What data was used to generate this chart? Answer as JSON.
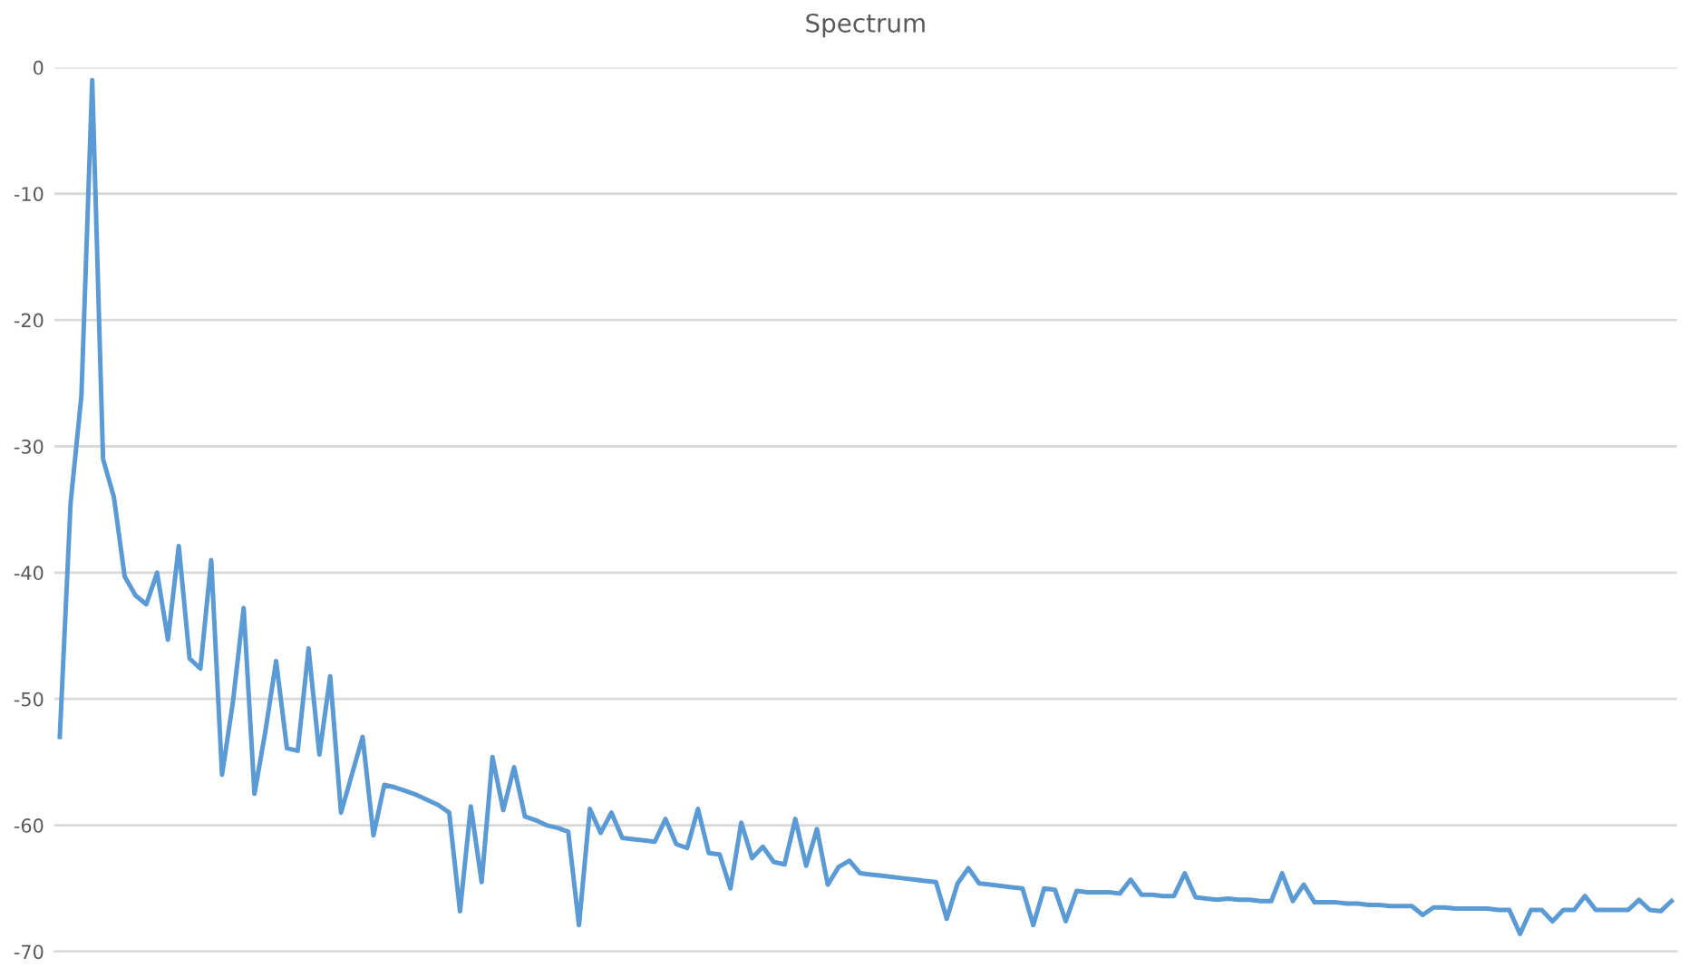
{
  "chart_data": {
    "type": "line",
    "title": "Spectrum",
    "categories": [
      null,
      null,
      null,
      null,
      null,
      null,
      null,
      null,
      null,
      null,
      null,
      null,
      null,
      null,
      null,
      null,
      null,
      null,
      null,
      null,
      null,
      null,
      null,
      null,
      null,
      null,
      null,
      null,
      null,
      null,
      null,
      null,
      null,
      null,
      null,
      null,
      null,
      null,
      null,
      null,
      null,
      null,
      null,
      null,
      null,
      null,
      null,
      null,
      null,
      null,
      null,
      null,
      null,
      null,
      null,
      null,
      null,
      null,
      null,
      null,
      null,
      null,
      null,
      null,
      null,
      null,
      null,
      null,
      null,
      null,
      null,
      null,
      null,
      null,
      null,
      null,
      null,
      null,
      null,
      null,
      null,
      null,
      null,
      null,
      null,
      null,
      null,
      null,
      null,
      null,
      null,
      null,
      null,
      null,
      null,
      null,
      null,
      null,
      null,
      null,
      null,
      null,
      null,
      null,
      null,
      null,
      null,
      null,
      null,
      null,
      null,
      null,
      null,
      null,
      null,
      null,
      null,
      null,
      null,
      null,
      null,
      null,
      null,
      null,
      null,
      null,
      null,
      null,
      null,
      null,
      null,
      null,
      null,
      null,
      null,
      null,
      null,
      null,
      null,
      null,
      null,
      null,
      null,
      null,
      null,
      null,
      null,
      null,
      null,
      null
    ],
    "series": [
      {
        "color": "#5b9bd5",
        "values": [
          -53,
          -34.5,
          -26,
          -1,
          -31,
          -34,
          -40.3,
          -41.8,
          -42.5,
          -40,
          -45.3,
          -37.9,
          -46.8,
          -47.6,
          -39,
          -56,
          -50.3,
          -42.8,
          -57.5,
          -52.6,
          -47,
          -53.9,
          -54.1,
          -46,
          -54.4,
          -48.2,
          -59,
          -56,
          -53,
          -60.8,
          -56.8,
          -57,
          -57.3,
          -57.6,
          -58,
          -58.4,
          -59,
          -66.8,
          -58.5,
          -64.5,
          -54.6,
          -58.8,
          -55.4,
          -59.3,
          -59.6,
          -60,
          -60.2,
          -60.5,
          -67.9,
          -58.7,
          -60.6,
          -59,
          -61,
          -61.1,
          -61.2,
          -61.3,
          -59.5,
          -61.5,
          -61.8,
          -58.7,
          -62.2,
          -62.3,
          -65,
          -59.8,
          -62.6,
          -61.7,
          -62.9,
          -63.1,
          -59.5,
          -63.2,
          -60.3,
          -64.7,
          -63.3,
          -62.8,
          -63.8,
          -63.9,
          -64,
          -64.1,
          -64.2,
          -64.3,
          -64.4,
          -64.5,
          -67.4,
          -64.6,
          -63.4,
          -64.6,
          -64.7,
          -64.8,
          -64.9,
          -65,
          -67.9,
          -65,
          -65.1,
          -67.6,
          -65.2,
          -65.3,
          -65.3,
          -65.3,
          -65.4,
          -64.3,
          -65.5,
          -65.5,
          -65.6,
          -65.6,
          -63.8,
          -65.7,
          -65.8,
          -65.9,
          -65.8,
          -65.9,
          -65.9,
          -66,
          -66,
          -63.8,
          -66,
          -64.7,
          -66.1,
          -66.1,
          -66.1,
          -66.2,
          -66.2,
          -66.3,
          -66.3,
          -66.4,
          -66.4,
          -66.4,
          -67.1,
          -66.5,
          -66.5,
          -66.6,
          -66.6,
          -66.6,
          -66.6,
          -66.7,
          -66.7,
          -68.6,
          -66.7,
          -66.7,
          -67.6,
          -66.7,
          -66.7,
          -65.6,
          -66.7,
          -66.7,
          -66.7,
          -66.7,
          -65.9,
          -66.7,
          -66.8,
          -66
        ]
      }
    ],
    "ylim": [
      -70,
      0
    ],
    "yticks": [
      -70,
      -60,
      -50,
      -40,
      -30,
      -20,
      -10,
      0
    ],
    "grid": "y",
    "tick_labels": "y",
    "legend": false
  }
}
